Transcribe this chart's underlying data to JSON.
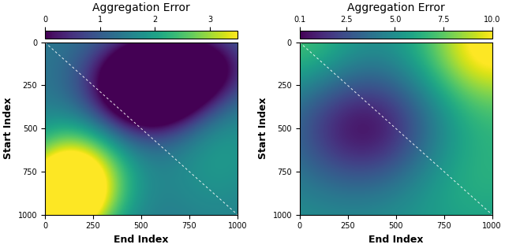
{
  "title": "Aggregation Error",
  "xlabel": "End Index",
  "ylabel": "Start Index",
  "cmap": "viridis",
  "n": 1000,
  "grid_size": 300,
  "plot1": {
    "vmin": 0,
    "vmax": 3.5,
    "colorbar_ticks": [
      0,
      1,
      2,
      3
    ],
    "colorbar_ticklabels": [
      "0",
      "1",
      "2",
      "3"
    ]
  },
  "plot2": {
    "vmin": 0.1,
    "vmax": 10.0,
    "colorbar_ticks": [
      0.1,
      2.5,
      5.0,
      7.5,
      10.0
    ],
    "colorbar_ticklabels": [
      "0.1",
      "2.5",
      "5.0",
      "7.5",
      "10.0"
    ]
  },
  "xticks": [
    0,
    250,
    500,
    750,
    1000
  ],
  "yticks": [
    0,
    250,
    500,
    750,
    1000
  ],
  "ytick_labels": [
    "0",
    "250",
    "500",
    "750",
    "1000"
  ],
  "axis_label_fontsize": 9,
  "title_fontsize": 10,
  "tick_fontsize": 7
}
